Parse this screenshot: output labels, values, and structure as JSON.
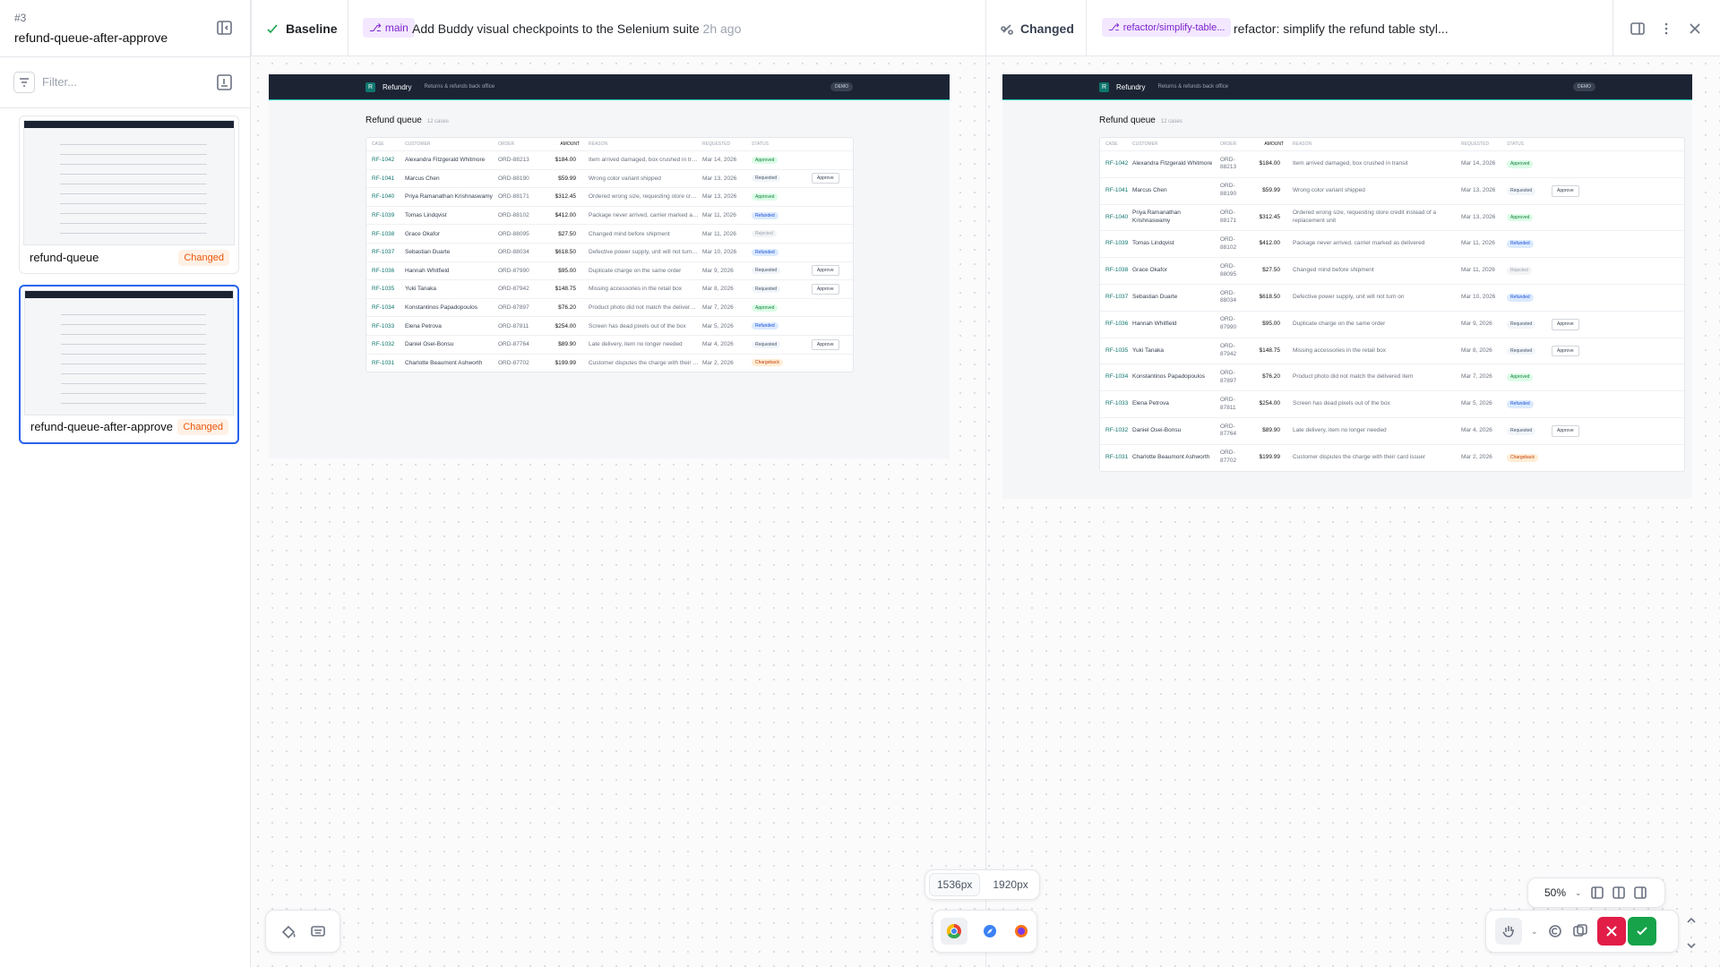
{
  "sidebar": {
    "number": "#3",
    "title": "refund-queue-after-approve",
    "filter_placeholder": "Filter...",
    "items": [
      {
        "name": "refund-queue",
        "status": "Changed"
      },
      {
        "name": "refund-queue-after-approve",
        "status": "Changed"
      }
    ]
  },
  "baseline": {
    "label": "Baseline",
    "branch": "main",
    "commit": "Add Buddy visual checkpoints to the Selenium suite",
    "time": "2h ago"
  },
  "changed": {
    "label": "Changed",
    "branch": "refactor/simplify-table...",
    "commit": "refactor: simplify the refund table styl..."
  },
  "viewports": [
    "1536px",
    "1920px"
  ],
  "zoom": "50%",
  "snapshot": {
    "brand_mark": "R",
    "brand": "Refundry",
    "tagline": "Returns & refunds back office",
    "badge": "DEMO",
    "heading": "Refund queue",
    "count": "12 cases",
    "columns": [
      "CASE",
      "CUSTOMER",
      "ORDER",
      "AMOUNT",
      "REASON",
      "REQUESTED",
      "STATUS"
    ],
    "action": "Approve",
    "rows": [
      [
        "RF-1042",
        "Alexandra Fitzgerald Whitmore",
        "ORD-88213",
        "$184.00",
        "Item arrived damaged, box crushed in transit",
        "Mar 14, 2026",
        "Approved"
      ],
      [
        "RF-1041",
        "Marcus Chen",
        "ORD-88190",
        "$59.99",
        "Wrong color variant shipped",
        "Mar 13, 2026",
        "Requested"
      ],
      [
        "RF-1040",
        "Priya Ramanathan Krishnaswamy",
        "ORD-88171",
        "$312.45",
        "Ordered wrong size, requesting store credit instead of a replacement unit",
        "Mar 13, 2026",
        "Approved"
      ],
      [
        "RF-1039",
        "Tomas Lindqvist",
        "ORD-88102",
        "$412.00",
        "Package never arrived, carrier marked as delivered",
        "Mar 11, 2026",
        "Refunded"
      ],
      [
        "RF-1038",
        "Grace Okafor",
        "ORD-88095",
        "$27.50",
        "Changed mind before shipment",
        "Mar 11, 2026",
        "Rejected"
      ],
      [
        "RF-1037",
        "Sebastian Duarte",
        "ORD-88034",
        "$618.50",
        "Defective power supply, unit will not turn on",
        "Mar 10, 2026",
        "Refunded"
      ],
      [
        "RF-1036",
        "Hannah Whitfield",
        "ORD-87990",
        "$95.00",
        "Duplicate charge on the same order",
        "Mar 9, 2026",
        "Requested"
      ],
      [
        "RF-1035",
        "Yuki Tanaka",
        "ORD-87942",
        "$148.75",
        "Missing accessories in the retail box",
        "Mar 8, 2026",
        "Requested"
      ],
      [
        "RF-1034",
        "Konstantinos Papadopoulos",
        "ORD-87897",
        "$76.20",
        "Product photo did not match the delivered item",
        "Mar 7, 2026",
        "Approved"
      ],
      [
        "RF-1033",
        "Elena Petrova",
        "ORD-87811",
        "$254.00",
        "Screen has dead pixels out of the box",
        "Mar 5, 2026",
        "Refunded"
      ],
      [
        "RF-1032",
        "Daniel Osei-Bonsu",
        "ORD-87764",
        "$89.90",
        "Late delivery, item no longer needed",
        "Mar 4, 2026",
        "Requested"
      ],
      [
        "RF-1031",
        "Charlotte Beaumont Ashworth",
        "ORD-87702",
        "$199.99",
        "Customer disputes the charge with their card issuer",
        "Mar 2, 2026",
        "Chargeback"
      ]
    ]
  }
}
